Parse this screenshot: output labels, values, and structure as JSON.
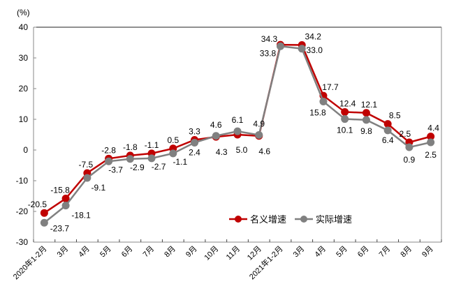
{
  "chart_data": {
    "type": "line",
    "title": "",
    "ylabel": "(%)",
    "xlabel": "",
    "ylim": [
      -30,
      40
    ],
    "yticks": [
      40,
      30,
      20,
      10,
      0,
      -10,
      -20,
      -30
    ],
    "grid": false,
    "legend_position": "lower-right inside plot",
    "categories": [
      "2020年1-2月",
      "3月",
      "4月",
      "5月",
      "6月",
      "7月",
      "8月",
      "9月",
      "10月",
      "11月",
      "12月",
      "2021年1-2月",
      "3月",
      "4月",
      "5月",
      "6月",
      "7月",
      "8月",
      "9月"
    ],
    "series": [
      {
        "name": "名义增速",
        "color": "#C00000",
        "values": [
          -20.5,
          -15.8,
          -7.5,
          -2.8,
          -1.8,
          -1.1,
          0.5,
          3.3,
          4.3,
          5.0,
          4.6,
          34.3,
          34.2,
          17.7,
          12.4,
          12.1,
          8.5,
          2.5,
          4.4
        ]
      },
      {
        "name": "实际增速",
        "color": "#808080",
        "values": [
          -23.7,
          -18.1,
          -9.1,
          -3.7,
          -2.9,
          -2.7,
          -1.1,
          2.4,
          4.6,
          6.1,
          4.9,
          33.8,
          33.0,
          15.8,
          10.1,
          9.8,
          6.4,
          0.9,
          2.5
        ]
      }
    ],
    "data_labels": {
      "名义增速": [
        "-20.5",
        "-15.8",
        "-7.5",
        "-2.8",
        "-1.8",
        "-1.1",
        "0.5",
        "3.3",
        "4.3",
        "5.0",
        "4.6",
        "34.3",
        "34.2",
        "17.7",
        "12.4",
        "12.1",
        "8.5",
        "2.5",
        "4.4"
      ],
      "实际增速": [
        "-23.7",
        "-18.1",
        "-9.1",
        "-3.7",
        "-2.9",
        "-2.7",
        "-1.1",
        "2.4",
        "4.6",
        "6.1",
        "4.9",
        "33.8",
        "33.0",
        "15.8",
        "10.1",
        "9.8",
        "6.4",
        "0.9",
        "2.5"
      ]
    }
  },
  "axis": {
    "unit_label": "(%)"
  },
  "legend": {
    "items": [
      {
        "label": "名义增速",
        "color": "#C00000"
      },
      {
        "label": "实际增速",
        "color": "#808080"
      }
    ]
  }
}
